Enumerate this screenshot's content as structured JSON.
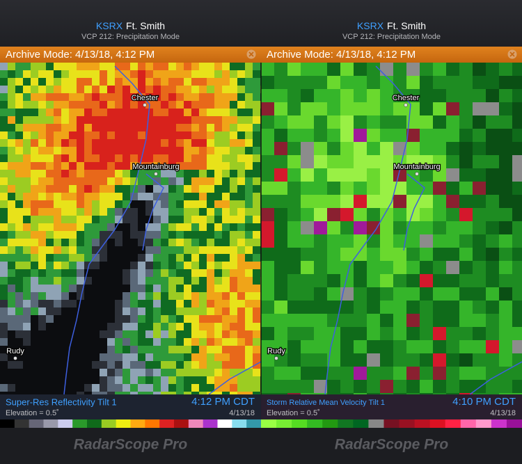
{
  "panels": [
    {
      "station": "KSRX",
      "site": "Ft. Smith",
      "mode": "VCP 212: Precipitation Mode",
      "archive": "Archive Mode: 4/13/18, 4:12 PM",
      "places": [
        "Chester",
        "Mountainburg",
        "Rudy"
      ],
      "product": "Super-Res Reflectivity Tilt 1",
      "time": "4:12 PM CDT",
      "elevation": "Elevation = 0.5˚",
      "date": "4/13/18",
      "brand": "RadarScope Pro"
    },
    {
      "station": "KSRX",
      "site": "Ft. Smith",
      "mode": "VCP 212: Precipitation Mode",
      "archive": "Archive Mode: 4/13/18, 4:12 PM",
      "places": [
        "Chester",
        "Mountainburg",
        "Rudy"
      ],
      "product": "Storm Relative Mean Velocity Tilt 1",
      "time": "4:10 PM CDT",
      "elevation": "Elevation = 0.5˚",
      "date": "4/13/18",
      "brand": "RadarScope Pro"
    }
  ]
}
